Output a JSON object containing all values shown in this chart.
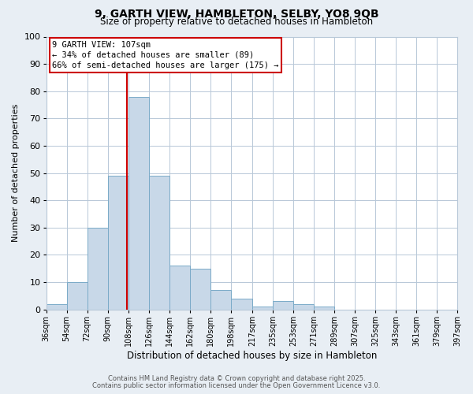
{
  "title1": "9, GARTH VIEW, HAMBLETON, SELBY, YO8 9QB",
  "title2": "Size of property relative to detached houses in Hambleton",
  "xlabel": "Distribution of detached houses by size in Hambleton",
  "ylabel": "Number of detached properties",
  "bin_edges": [
    36,
    54,
    72,
    90,
    108,
    126,
    144,
    162,
    180,
    198,
    217,
    235,
    253,
    271,
    289,
    307,
    325,
    343,
    361,
    379,
    397
  ],
  "counts": [
    2,
    10,
    30,
    49,
    78,
    49,
    16,
    15,
    7,
    4,
    1,
    3,
    2,
    1,
    0,
    0,
    0,
    0,
    0,
    0
  ],
  "bar_color": "#c8d8e8",
  "bar_edge_color": "#7aaac8",
  "property_size": 107,
  "vline_color": "#cc0000",
  "annotation_line1": "9 GARTH VIEW: 107sqm",
  "annotation_line2": "← 34% of detached houses are smaller (89)",
  "annotation_line3": "66% of semi-detached houses are larger (175) →",
  "annotation_box_color": "#ffffff",
  "annotation_box_edge": "#cc0000",
  "ylim": [
    0,
    100
  ],
  "yticks": [
    0,
    10,
    20,
    30,
    40,
    50,
    60,
    70,
    80,
    90,
    100
  ],
  "tick_labels": [
    "36sqm",
    "54sqm",
    "72sqm",
    "90sqm",
    "108sqm",
    "126sqm",
    "144sqm",
    "162sqm",
    "180sqm",
    "198sqm",
    "217sqm",
    "235sqm",
    "253sqm",
    "271sqm",
    "289sqm",
    "307sqm",
    "325sqm",
    "343sqm",
    "361sqm",
    "379sqm",
    "397sqm"
  ],
  "footer1": "Contains HM Land Registry data © Crown copyright and database right 2025.",
  "footer2": "Contains public sector information licensed under the Open Government Licence v3.0.",
  "background_color": "#e8eef4",
  "plot_background": "#ffffff",
  "grid_color": "#b8c8d8",
  "title1_fontsize": 10,
  "title2_fontsize": 8.5,
  "xlabel_fontsize": 8.5,
  "ylabel_fontsize": 8,
  "tick_fontsize": 7,
  "ytick_fontsize": 8,
  "footer_fontsize": 6,
  "annot_fontsize": 7.5
}
